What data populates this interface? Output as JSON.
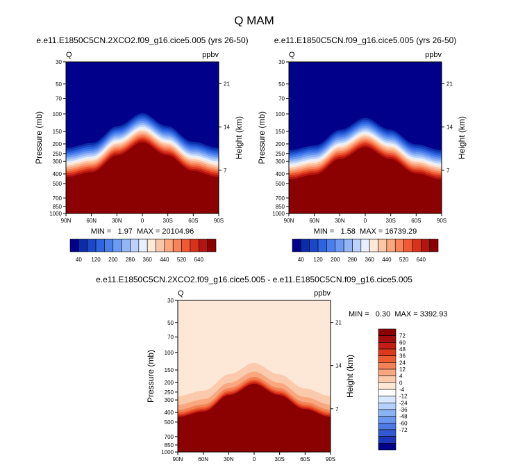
{
  "figure_title": "Q MAM",
  "colors": {
    "cb1": [
      "#00008b",
      "#0b2ca8",
      "#1a48c8",
      "#2f64e0",
      "#4a7eec",
      "#6c9af2",
      "#92b6f6",
      "#bcd2fb",
      "#e8f0ff",
      "#fee8d8",
      "#fcc7a8",
      "#fba77f",
      "#f8825a",
      "#ee5a36",
      "#d8321b",
      "#b51410",
      "#8b0000"
    ],
    "cb2": [
      "#8b0000",
      "#a50c0c",
      "#c41e12",
      "#dd3a1c",
      "#ee5c32",
      "#f48156",
      "#f8a77f",
      "#fbcaad",
      "#fde7d6",
      "#ffffff",
      "#d7e7ff",
      "#b5d0fb",
      "#8bb2f4",
      "#6a97ee",
      "#4e79e4",
      "#3358d3",
      "#1b36b8",
      "#00008b"
    ]
  },
  "chart_data": [
    {
      "type": "heatmap",
      "title": "e.e11.E1850C5CN.2XCO2.f09_g16.cice5.005 (yrs 26-50)",
      "left_label": "Q",
      "right_label": "ppbv",
      "xlabel": "",
      "ylabel": "Pressure (mb)",
      "ylabel_right": "Height (km)",
      "x_ticks": [
        "90N",
        "60N",
        "30N",
        "0",
        "30S",
        "60S",
        "90S"
      ],
      "y_ticks": [
        "30",
        "50",
        "70",
        "100",
        "150",
        "200",
        "250",
        "300",
        "400",
        "500",
        "700",
        "850",
        "1000"
      ],
      "y_ticks_right": [
        "21",
        "14",
        "7"
      ],
      "ylim": [
        1000,
        30
      ],
      "stats": "MIN =   1.97  MAX = 20104.96",
      "colorbar_labels": [
        "40",
        "120",
        "200",
        "280",
        "360",
        "440",
        "520",
        "640"
      ],
      "field": {
        "tropopause_lat": [
          -90,
          -60,
          -30,
          0,
          30,
          60,
          90
        ],
        "tropopause_p": [
          380,
          330,
          230,
          170,
          230,
          340,
          380
        ]
      }
    },
    {
      "type": "heatmap",
      "title": "e.e11.E1850C5CN.f09_g16.cice5.005 (yrs 26-50)",
      "left_label": "Q",
      "right_label": "ppbv",
      "xlabel": "",
      "ylabel": "Pressure (mb)",
      "ylabel_right": "Height (km)",
      "x_ticks": [
        "90N",
        "60N",
        "30N",
        "0",
        "30S",
        "60S",
        "90S"
      ],
      "y_ticks": [
        "30",
        "50",
        "70",
        "100",
        "150",
        "200",
        "250",
        "300",
        "400",
        "500",
        "700",
        "850",
        "1000"
      ],
      "y_ticks_right": [
        "21",
        "14",
        "7"
      ],
      "ylim": [
        1000,
        30
      ],
      "stats": "MIN =   1.58  MAX = 16739.29",
      "colorbar_labels": [
        "40",
        "120",
        "200",
        "280",
        "360",
        "440",
        "520",
        "640"
      ],
      "field": {
        "tropopause_lat": [
          -90,
          -60,
          -30,
          0,
          30,
          60,
          90
        ],
        "tropopause_p": [
          400,
          350,
          250,
          190,
          250,
          360,
          400
        ]
      }
    },
    {
      "type": "heatmap",
      "title": "e.e11.E1850C5CN.2XCO2.f09_g16.cice5.005 - e.e11.E1850C5CN.f09_g16.cice5.005",
      "left_label": "Q",
      "right_label": "ppbv",
      "xlabel": "",
      "ylabel": "Pressure (mb)",
      "ylabel_right": "Height (km)",
      "x_ticks": [
        "90N",
        "60N",
        "30N",
        "0",
        "30S",
        "60S",
        "90S"
      ],
      "y_ticks": [
        "30",
        "50",
        "70",
        "100",
        "150",
        "200",
        "250",
        "300",
        "400",
        "500",
        "700",
        "850",
        "1000"
      ],
      "y_ticks_right": [
        "21",
        "14",
        "7"
      ],
      "ylim": [
        1000,
        30
      ],
      "stats": "MIN =   0.30  MAX = 3392.93",
      "colorbar_labels": [
        "72",
        "60",
        "48",
        "36",
        "24",
        "12",
        "4",
        "0",
        "-4",
        "-12",
        "-24",
        "-36",
        "-48",
        "-60",
        "-72"
      ],
      "field": {
        "tropopause_lat": [
          -90,
          -60,
          -30,
          0,
          30,
          60,
          90
        ],
        "tropopause_p": [
          430,
          360,
          260,
          200,
          260,
          380,
          430
        ]
      }
    }
  ]
}
